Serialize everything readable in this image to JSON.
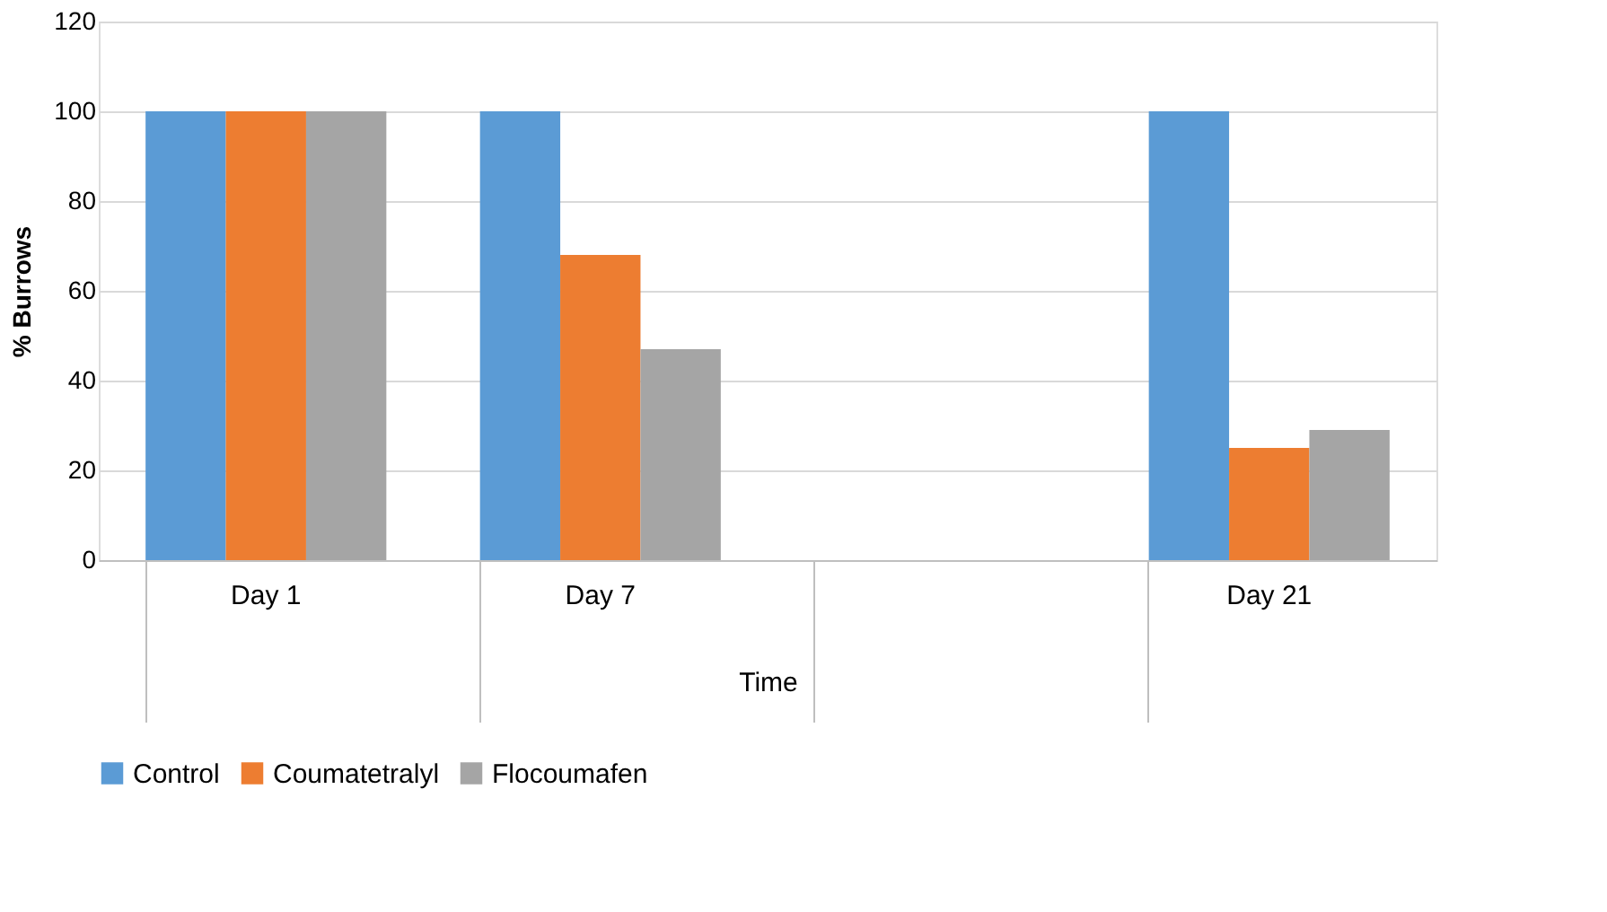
{
  "chart_data": {
    "type": "bar",
    "xlabel": "Time",
    "ylabel": "% Burrows",
    "categories": [
      "Day 1",
      "Day 7",
      null,
      "Day 21"
    ],
    "series": [
      {
        "name": "Control",
        "color": "#5b9bd5",
        "values": [
          100,
          100,
          null,
          100
        ]
      },
      {
        "name": "Coumatetralyl",
        "color": "#ed7d31",
        "values": [
          100,
          68,
          null,
          25
        ]
      },
      {
        "name": "Flocoumafen",
        "color": "#a5a5a5",
        "values": [
          100,
          47,
          null,
          29
        ]
      }
    ],
    "ylim": [
      0,
      120
    ],
    "yticks": [
      0,
      20,
      40,
      60,
      80,
      100,
      120
    ],
    "grid": "y",
    "legend": "bottom"
  }
}
